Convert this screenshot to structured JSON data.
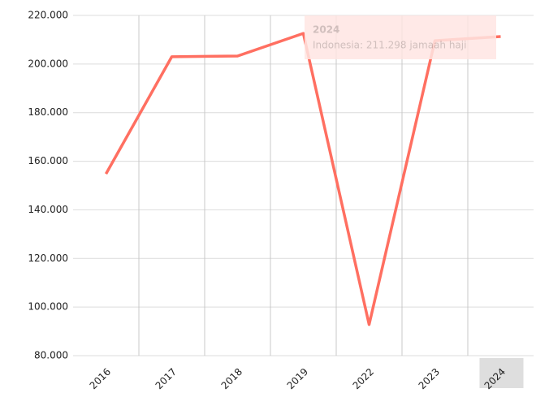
{
  "chart_data": {
    "type": "line",
    "categories": [
      "2016",
      "2017",
      "2018",
      "2019",
      "2022",
      "2023",
      "2024"
    ],
    "series": [
      {
        "name": "Indonesia",
        "color": "#ff6f61",
        "values": [
          154800,
          203000,
          203300,
          212600,
          92800,
          209600,
          211298
        ]
      }
    ],
    "ylim": [
      80000,
      220000
    ],
    "yticks": [
      {
        "value": 80000,
        "label": "80.000"
      },
      {
        "value": 100000,
        "label": "100.000"
      },
      {
        "value": 120000,
        "label": "120.000"
      },
      {
        "value": 140000,
        "label": "140.000"
      },
      {
        "value": 160000,
        "label": "160.000"
      },
      {
        "value": 180000,
        "label": "180.000"
      },
      {
        "value": 200000,
        "label": "200.000"
      },
      {
        "value": 220000,
        "label": "220.000"
      }
    ],
    "grid": true,
    "tooltip": {
      "title": "2024",
      "text": "Indonesia: 211.298 jamaah haji"
    }
  }
}
